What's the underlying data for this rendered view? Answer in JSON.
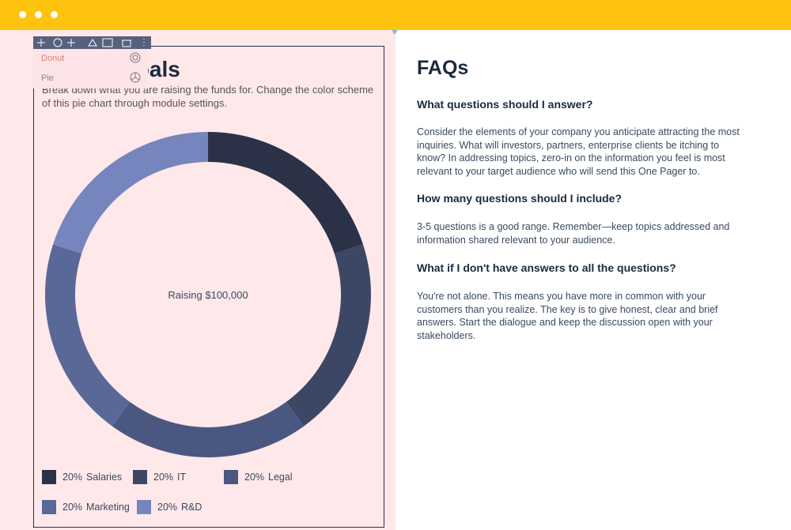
{
  "window": {
    "dots": 3
  },
  "dropdown": {
    "items": [
      "Donut",
      "Pie"
    ]
  },
  "goals": {
    "title": "Goals",
    "description": "Break down what you are raising the funds for. Change the color scheme of this pie chart through module settings.",
    "chart": {
      "type": "donut",
      "center_label": "Raising $100,000",
      "categories": [
        "Salaries",
        "IT",
        "Legal",
        "Marketing",
        "R&D"
      ],
      "values": [
        20,
        20,
        20,
        20,
        20
      ],
      "value_labels": [
        "20%",
        "20%",
        "20%",
        "20%",
        "20%"
      ],
      "colors": [
        "#2b3247",
        "#3c4765",
        "#4a5780",
        "#5a6898",
        "#7685bd"
      ]
    }
  },
  "faqs": {
    "title": "FAQs",
    "items": [
      {
        "question": "What questions should I answer?",
        "answer": "Consider the elements of your company you anticipate attracting the most inquiries. What will investors, partners, enterprise clients be itching to know? In addressing topics, zero-in on the information you feel is most relevant to your target audience who will send this One Pager to."
      },
      {
        "question": "How many questions should I include?",
        "answer": "3-5 questions is a good range. Remember—keep topics addressed and information shared relevant to your audience."
      },
      {
        "question": "What if I don't have answers to all the questions?",
        "answer": "You're not alone. This means you have more in common with your customers than you realize. The key is to give honest, clear and brief answers. Start the dialogue and keep the discussion open with your stakeholders."
      }
    ]
  }
}
